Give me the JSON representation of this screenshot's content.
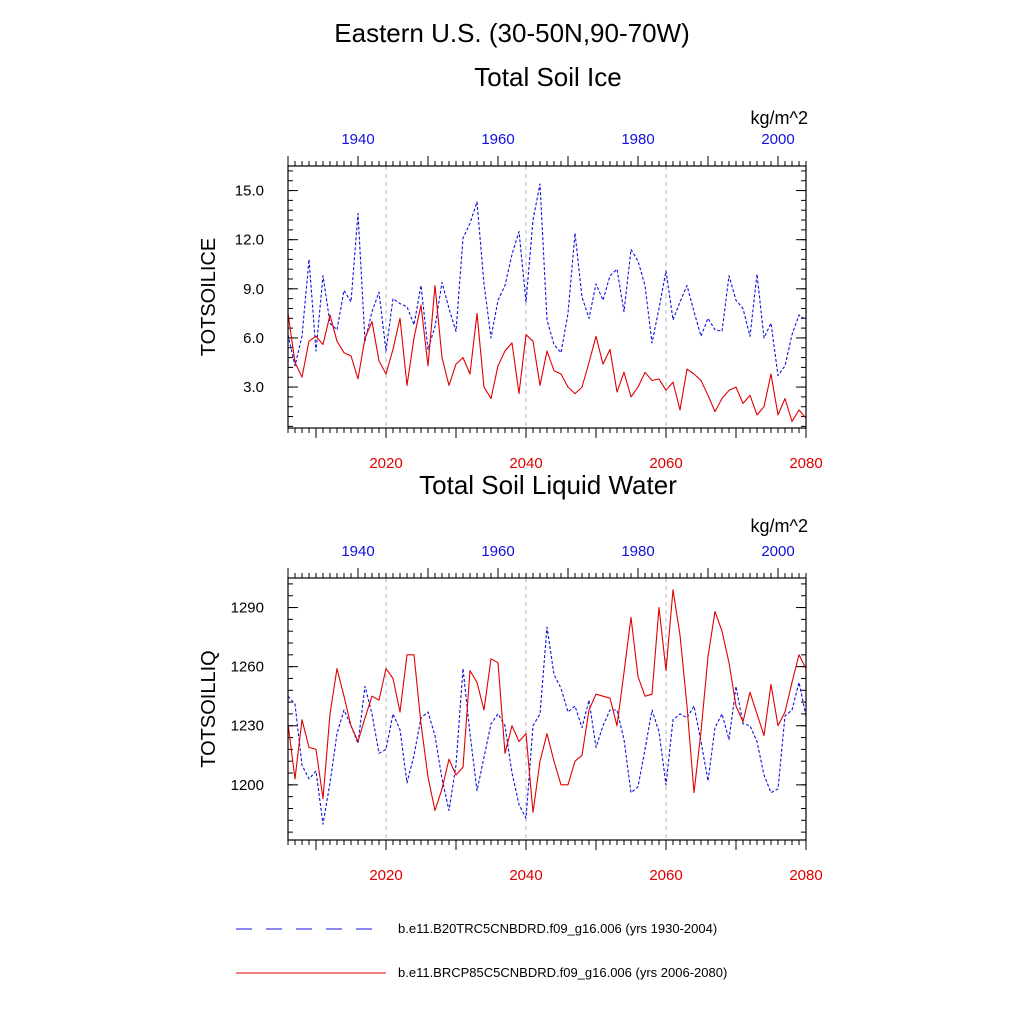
{
  "chart_data": [
    {
      "type": "line",
      "title": "Eastern U.S. (30-50N,90-70W)",
      "subtitle": "Total Soil Ice",
      "units": "kg/m^2",
      "ylabel": "TOTSOILICE",
      "ylim": [
        0.5,
        16.5
      ],
      "yticks": [
        3.0,
        6.0,
        9.0,
        12.0,
        15.0
      ],
      "ytick_labels": [
        "3.0",
        "6.0",
        "9.0",
        "12.0",
        "15.0"
      ],
      "top_axis": {
        "color": "#1010e0",
        "xlim": [
          1930,
          2004
        ],
        "ticks": [
          1940,
          1960,
          1980,
          2000
        ],
        "tick_labels": [
          "1940",
          "1960",
          "1980",
          "2000"
        ]
      },
      "bottom_axis": {
        "color": "#e00000",
        "xlim": [
          2006,
          2080
        ],
        "ticks": [
          2020,
          2040,
          2060,
          2080
        ],
        "tick_labels": [
          "2020",
          "2040",
          "2060",
          "2080"
        ]
      },
      "series": [
        {
          "name": "b.e11.B20TRC5CNBDRD.f09_g16.006 (yrs 1930-2004)",
          "axis": "top",
          "color": "#1010e0",
          "style": "dashed",
          "x": [
            1930,
            1931,
            1932,
            1933,
            1934,
            1935,
            1936,
            1937,
            1938,
            1939,
            1940,
            1941,
            1942,
            1943,
            1944,
            1945,
            1946,
            1947,
            1948,
            1949,
            1950,
            1951,
            1952,
            1953,
            1954,
            1955,
            1956,
            1957,
            1958,
            1959,
            1960,
            1961,
            1962,
            1963,
            1964,
            1965,
            1966,
            1967,
            1968,
            1969,
            1970,
            1971,
            1972,
            1973,
            1974,
            1975,
            1976,
            1977,
            1978,
            1979,
            1980,
            1981,
            1982,
            1983,
            1984,
            1985,
            1986,
            1987,
            1988,
            1989,
            1990,
            1991,
            1992,
            1993,
            1994,
            1995,
            1996,
            1997,
            1998,
            1999,
            2000,
            2001,
            2002,
            2003,
            2004
          ],
          "values": [
            6.2,
            4.3,
            6.1,
            10.8,
            5.2,
            9.8,
            6.9,
            6.5,
            8.9,
            8.2,
            13.6,
            5.8,
            7.6,
            8.8,
            5.2,
            8.4,
            8.1,
            7.9,
            6.8,
            9.2,
            5.3,
            6.7,
            9.4,
            7.8,
            6.4,
            12.1,
            13.0,
            14.3,
            9.3,
            6.0,
            8.3,
            9.2,
            11.1,
            12.5,
            8.2,
            13.2,
            15.4,
            7.1,
            5.6,
            5.1,
            7.5,
            12.4,
            8.5,
            7.2,
            9.3,
            8.3,
            9.8,
            10.2,
            7.6,
            11.4,
            10.7,
            9.2,
            5.7,
            7.8,
            10.1,
            7.1,
            8.2,
            9.2,
            7.6,
            6.1,
            7.2,
            6.5,
            6.4,
            9.8,
            8.3,
            7.8,
            6.1,
            9.9,
            6.0,
            6.9,
            3.7,
            4.3,
            6.2,
            7.4,
            7.1
          ]
        },
        {
          "name": "b.e11.BRCP85C5CNBDRD.f09_g16.006 (yrs 2006-2080)",
          "axis": "bottom",
          "color": "#e00000",
          "style": "solid",
          "x": [
            2006,
            2007,
            2008,
            2009,
            2010,
            2011,
            2012,
            2013,
            2014,
            2015,
            2016,
            2017,
            2018,
            2019,
            2020,
            2021,
            2022,
            2023,
            2024,
            2025,
            2026,
            2027,
            2028,
            2029,
            2030,
            2031,
            2032,
            2033,
            2034,
            2035,
            2036,
            2037,
            2038,
            2039,
            2040,
            2041,
            2042,
            2043,
            2044,
            2045,
            2046,
            2047,
            2048,
            2049,
            2050,
            2051,
            2052,
            2053,
            2054,
            2055,
            2056,
            2057,
            2058,
            2059,
            2060,
            2061,
            2062,
            2063,
            2064,
            2065,
            2066,
            2067,
            2068,
            2069,
            2070,
            2071,
            2072,
            2073,
            2074,
            2075,
            2076,
            2077,
            2078,
            2079,
            2080
          ],
          "values": [
            7.5,
            4.5,
            3.6,
            5.8,
            6.1,
            5.6,
            7.4,
            5.8,
            5.1,
            4.9,
            3.5,
            6.0,
            7.0,
            4.6,
            3.8,
            5.3,
            7.2,
            3.1,
            6.0,
            8.0,
            4.3,
            9.2,
            4.8,
            3.1,
            4.4,
            4.8,
            3.8,
            7.5,
            3.0,
            2.3,
            4.3,
            5.2,
            5.7,
            2.6,
            6.2,
            5.8,
            3.1,
            5.2,
            4.0,
            3.8,
            3.0,
            2.6,
            3.0,
            4.5,
            6.1,
            4.4,
            5.3,
            2.7,
            3.9,
            2.4,
            3.0,
            3.9,
            3.4,
            3.5,
            2.8,
            3.3,
            1.6,
            4.1,
            3.8,
            3.4,
            2.5,
            1.5,
            2.3,
            2.8,
            3.0,
            2.0,
            2.5,
            1.3,
            1.8,
            3.8,
            1.3,
            2.3,
            0.9,
            1.6,
            1.1
          ]
        }
      ]
    },
    {
      "type": "line",
      "title": "Total Soil Liquid Water",
      "units": "kg/m^2",
      "ylabel": "TOTSOILLIQ",
      "ylim": [
        1172,
        1305
      ],
      "yticks": [
        1200,
        1230,
        1260,
        1290
      ],
      "ytick_labels": [
        "1200",
        "1230",
        "1260",
        "1290"
      ],
      "top_axis": {
        "color": "#1010e0",
        "xlim": [
          1930,
          2004
        ],
        "ticks": [
          1940,
          1960,
          1980,
          2000
        ],
        "tick_labels": [
          "1940",
          "1960",
          "1980",
          "2000"
        ]
      },
      "bottom_axis": {
        "color": "#e00000",
        "xlim": [
          2006,
          2080
        ],
        "ticks": [
          2020,
          2040,
          2060,
          2080
        ],
        "tick_labels": [
          "2020",
          "2040",
          "2060",
          "2080"
        ]
      },
      "series": [
        {
          "name": "b.e11.B20TRC5CNBDRD.f09_g16.006 (yrs 1930-2004)",
          "axis": "top",
          "color": "#1010e0",
          "style": "dashed",
          "x": [
            1930,
            1931,
            1932,
            1933,
            1934,
            1935,
            1936,
            1937,
            1938,
            1939,
            1940,
            1941,
            1942,
            1943,
            1944,
            1945,
            1946,
            1947,
            1948,
            1949,
            1950,
            1951,
            1952,
            1953,
            1954,
            1955,
            1956,
            1957,
            1958,
            1959,
            1960,
            1961,
            1962,
            1963,
            1964,
            1965,
            1966,
            1967,
            1968,
            1969,
            1970,
            1971,
            1972,
            1973,
            1974,
            1975,
            1976,
            1977,
            1978,
            1979,
            1980,
            1981,
            1982,
            1983,
            1984,
            1985,
            1986,
            1987,
            1988,
            1989,
            1990,
            1991,
            1992,
            1993,
            1994,
            1995,
            1996,
            1997,
            1998,
            1999,
            2000,
            2001,
            2002,
            2003,
            2004
          ],
          "values": [
            1245,
            1241,
            1210,
            1203,
            1207,
            1180,
            1201,
            1226,
            1238,
            1230,
            1221,
            1250,
            1236,
            1216,
            1218,
            1236,
            1228,
            1201,
            1215,
            1234,
            1237,
            1225,
            1203,
            1187,
            1210,
            1259,
            1226,
            1197,
            1214,
            1231,
            1236,
            1230,
            1206,
            1190,
            1183,
            1230,
            1236,
            1280,
            1256,
            1249,
            1237,
            1240,
            1229,
            1243,
            1219,
            1230,
            1238,
            1238,
            1223,
            1196,
            1199,
            1218,
            1238,
            1227,
            1200,
            1233,
            1236,
            1234,
            1240,
            1222,
            1202,
            1229,
            1236,
            1223,
            1250,
            1231,
            1230,
            1222,
            1205,
            1196,
            1198,
            1235,
            1238,
            1252,
            1235
          ]
        },
        {
          "name": "b.e11.BRCP85C5CNBDRD.f09_g16.006 (yrs 2006-2080)",
          "axis": "bottom",
          "color": "#e00000",
          "style": "solid",
          "x": [
            2006,
            2007,
            2008,
            2009,
            2010,
            2011,
            2012,
            2013,
            2014,
            2015,
            2016,
            2017,
            2018,
            2019,
            2020,
            2021,
            2022,
            2023,
            2024,
            2025,
            2026,
            2027,
            2028,
            2029,
            2030,
            2031,
            2032,
            2033,
            2034,
            2035,
            2036,
            2037,
            2038,
            2039,
            2040,
            2041,
            2042,
            2043,
            2044,
            2045,
            2046,
            2047,
            2048,
            2049,
            2050,
            2051,
            2052,
            2053,
            2054,
            2055,
            2056,
            2057,
            2058,
            2059,
            2060,
            2061,
            2062,
            2063,
            2064,
            2065,
            2066,
            2067,
            2068,
            2069,
            2070,
            2071,
            2072,
            2073,
            2074,
            2075,
            2076,
            2077,
            2078,
            2079,
            2080
          ],
          "values": [
            1231,
            1203,
            1233,
            1219,
            1218,
            1193,
            1236,
            1259,
            1245,
            1230,
            1222,
            1234,
            1245,
            1243,
            1259,
            1254,
            1237,
            1266,
            1266,
            1231,
            1204,
            1187,
            1198,
            1213,
            1205,
            1209,
            1258,
            1252,
            1238,
            1264,
            1262,
            1216,
            1230,
            1222,
            1226,
            1186,
            1212,
            1226,
            1212,
            1200,
            1200,
            1212,
            1215,
            1238,
            1246,
            1245,
            1244,
            1230,
            1257,
            1285,
            1255,
            1245,
            1246,
            1290,
            1258,
            1299,
            1276,
            1240,
            1196,
            1227,
            1265,
            1288,
            1278,
            1262,
            1240,
            1232,
            1247,
            1236,
            1225,
            1251,
            1230,
            1237,
            1252,
            1266,
            1259
          ]
        }
      ]
    }
  ],
  "legend": [
    {
      "label": "b.e11.B20TRC5CNBDRD.f09_g16.006 (yrs 1930-2004)",
      "color": "#1010e0",
      "style": "dashed"
    },
    {
      "label": "b.e11.BRCP85C5CNBDRD.f09_g16.006 (yrs 2006-2080)",
      "color": "#e00000",
      "style": "solid"
    }
  ]
}
